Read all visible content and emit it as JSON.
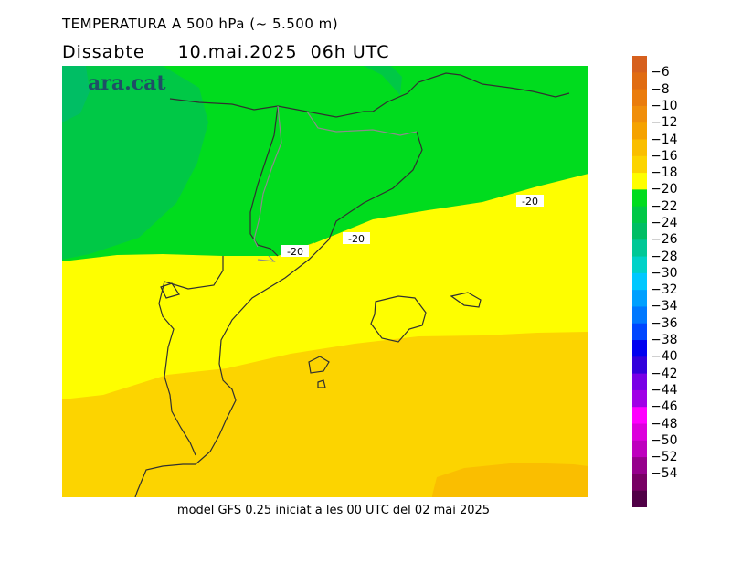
{
  "title": "TEMPERATURA A 500 hPa (~ 5.500 m)",
  "day": "Dissabte",
  "date": "10.mai.2025",
  "hour": "06h",
  "tz": "UTC",
  "watermark": "ara.cat",
  "footer": "model GFS 0.25 iniciat a les 00 UTC del 02 mai 2025",
  "contour_labels": [
    "-20",
    "-20",
    "-20"
  ],
  "colorbar": {
    "colors": [
      "#d6601e",
      "#e06c12",
      "#ea7c0c",
      "#f08e0a",
      "#f5a200",
      "#fabe00",
      "#fcd400",
      "#fefe00",
      "#00dc1e",
      "#00c846",
      "#00be64",
      "#00c896",
      "#00d2c8",
      "#00c8ff",
      "#00a0ff",
      "#0078ff",
      "#0046ff",
      "#0000f0",
      "#3200dc",
      "#7800e6",
      "#a000e6",
      "#ff00ff",
      "#dc00dc",
      "#be00be",
      "#96008c",
      "#780064",
      "#500046"
    ],
    "labels": [
      "-6",
      "-8",
      "-10",
      "-12",
      "-14",
      "-16",
      "-18",
      "-20",
      "-22",
      "-24",
      "-26",
      "-28",
      "-30",
      "-32",
      "-34",
      "-36",
      "-38",
      "-40",
      "-42",
      "-44",
      "-46",
      "-48",
      "-50",
      "-52",
      "-54"
    ]
  }
}
